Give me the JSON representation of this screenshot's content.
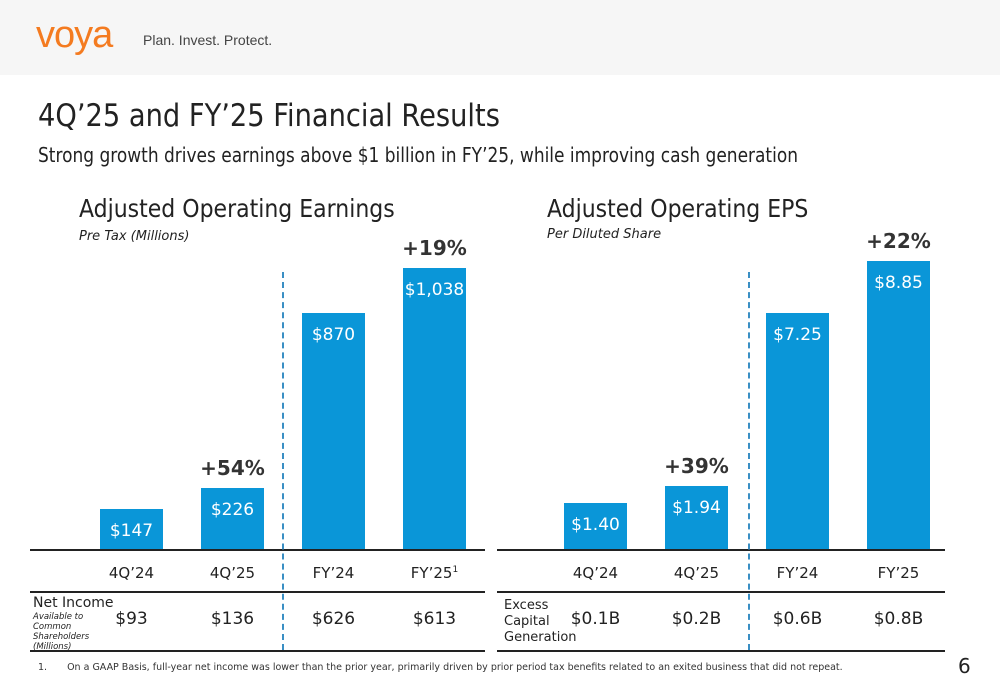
{
  "header": {
    "logo": "VOYA",
    "tagline": "Plan. Invest. Protect."
  },
  "title": "4Q’25 and FY’25 Financial Results",
  "subtitle": "Strong growth drives earnings above $1 billion in FY’25, while improving cash generation",
  "bar_color": "#0a96d8",
  "chart_data": [
    {
      "type": "bar",
      "title": "Adjusted Operating Earnings",
      "subtitle": "Pre Tax (Millions)",
      "categories": [
        "4Q’24",
        "4Q’25",
        "FY’24",
        "FY’25"
      ],
      "footnote_marker": "1",
      "values": [
        147,
        226,
        870,
        1038
      ],
      "labels": [
        "$147",
        "$226",
        "$870",
        "$1,038"
      ],
      "growth": [
        {
          "index": 1,
          "label": "+54%"
        },
        {
          "index": 3,
          "label": "+19%"
        }
      ],
      "ylim": [
        0,
        1038
      ],
      "table": {
        "label": "Net Income",
        "sublabel": "Available to Common Shareholders (Millions)",
        "values": [
          "$93",
          "$136",
          "$626",
          "$613"
        ]
      }
    },
    {
      "type": "bar",
      "title": "Adjusted Operating EPS",
      "subtitle": "Per Diluted Share",
      "categories": [
        "4Q’24",
        "4Q’25",
        "FY’24",
        "FY’25"
      ],
      "values": [
        1.4,
        1.94,
        7.25,
        8.85
      ],
      "labels": [
        "$1.40",
        "$1.94",
        "$7.25",
        "$8.85"
      ],
      "growth": [
        {
          "index": 1,
          "label": "+39%"
        },
        {
          "index": 3,
          "label": "+22%"
        }
      ],
      "ylim": [
        0,
        8.85
      ],
      "table": {
        "label": "Excess Capital Generation",
        "values": [
          "$0.1B",
          "$0.2B",
          "$0.6B",
          "$0.8B"
        ]
      }
    }
  ],
  "footnote": {
    "number": "1.",
    "text": "On a GAAP Basis, full-year net income was lower than the prior year, primarily driven by prior period tax benefits related to an exited business that did not repeat."
  },
  "page_number": "6"
}
